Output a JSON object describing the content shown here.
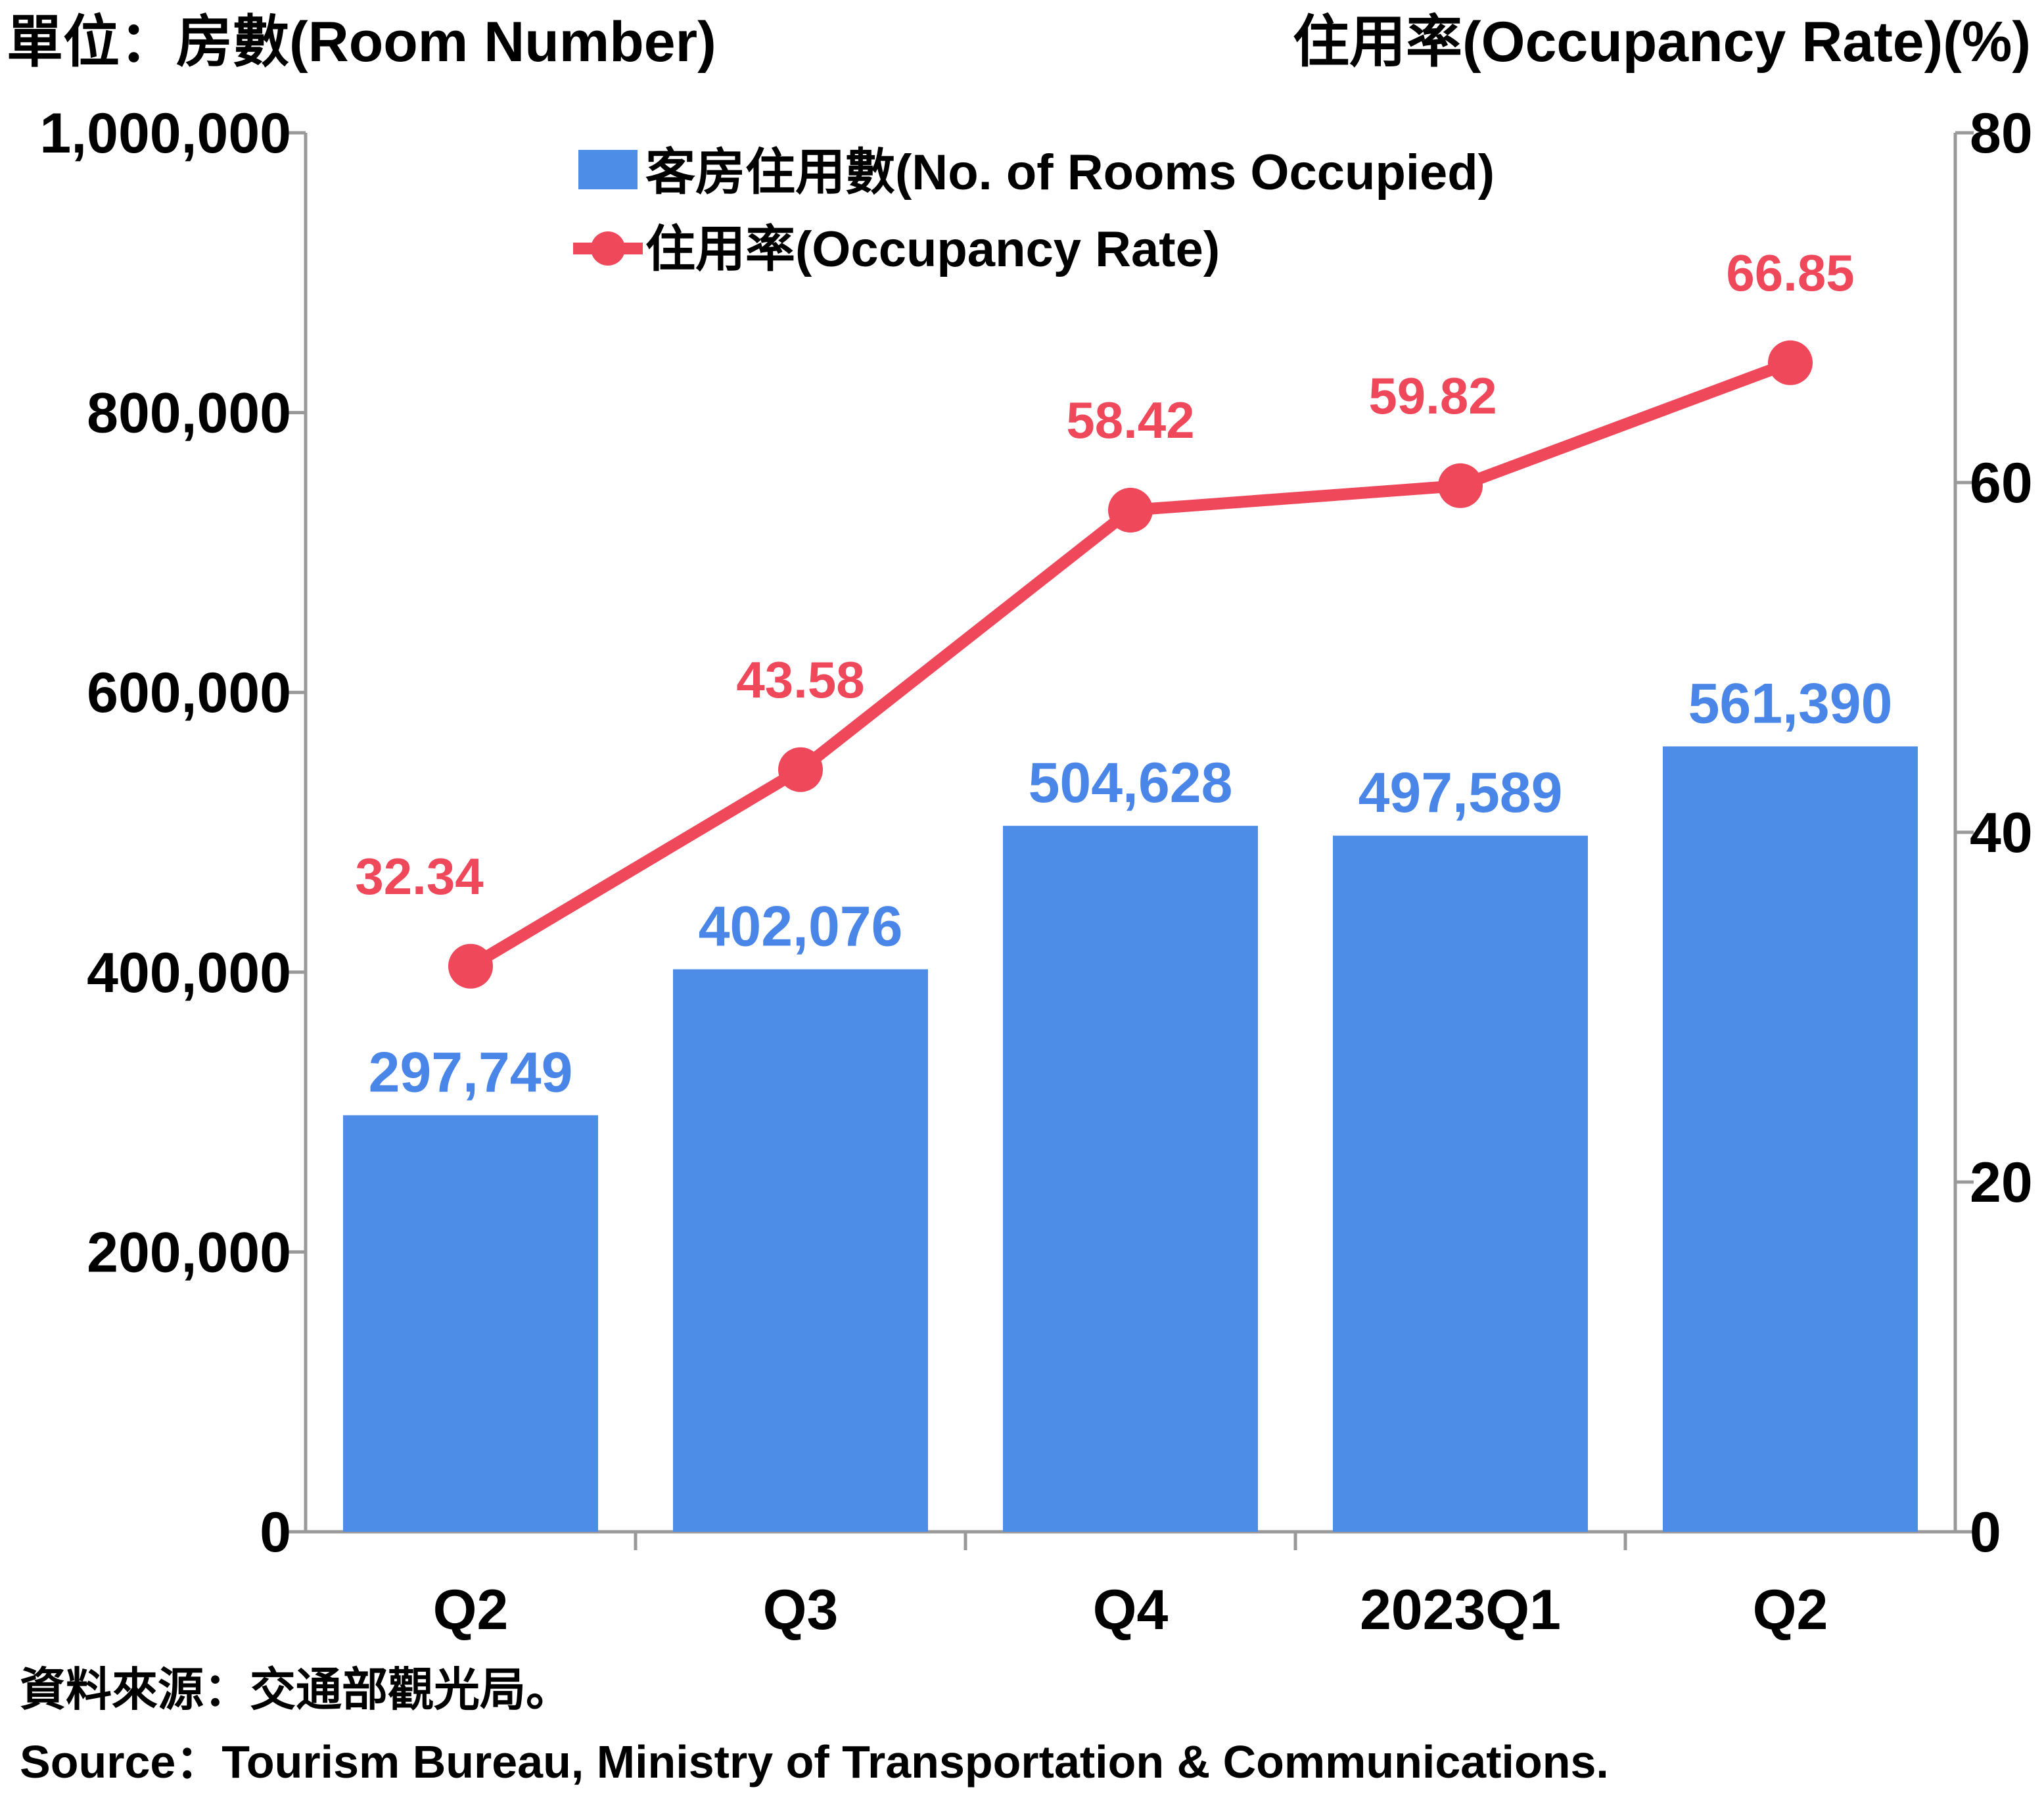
{
  "unit_left": "單位：房數(Room Number)",
  "unit_right": "住用率(Occupancy Rate)(%)",
  "source_zh": "資料來源：交通部觀光局。",
  "source_en": "Source：Tourism Bureau, Ministry of Transportation & Communications.",
  "colors": {
    "bar": "#4d8de8",
    "line": "#f0485b",
    "bar_label": "#4a86e8",
    "axis": "#999999"
  },
  "chart_data": {
    "type": "bar",
    "categories": [
      "Q2",
      "Q3",
      "Q4",
      "2023Q1",
      "Q2"
    ],
    "series": [
      {
        "name": "客房住用數(No. of Rooms Occupied)",
        "type": "bar",
        "axis": "left",
        "values": [
          297749,
          402076,
          504628,
          497589,
          561390
        ],
        "labels": [
          "297,749",
          "402,076",
          "504,628",
          "497,589",
          "561,390"
        ]
      },
      {
        "name": "住用率(Occupancy Rate)",
        "type": "line",
        "axis": "right",
        "values": [
          32.34,
          43.58,
          58.42,
          59.82,
          66.85
        ],
        "labels": [
          "32.34",
          "43.58",
          "58.42",
          "59.82",
          "66.85"
        ]
      }
    ],
    "y_left": {
      "min": 0,
      "max": 1000000,
      "ticks": [
        0,
        200000,
        400000,
        600000,
        800000,
        1000000
      ],
      "tick_labels": [
        "0",
        "200,000",
        "400,000",
        "600,000",
        "800,000",
        "1,000,000"
      ]
    },
    "y_right": {
      "min": 0,
      "max": 80,
      "ticks": [
        0,
        20,
        40,
        60,
        80
      ],
      "tick_labels": [
        "0",
        "20",
        "40",
        "60",
        "80"
      ]
    },
    "grid": false,
    "legend_position": "top-center"
  }
}
